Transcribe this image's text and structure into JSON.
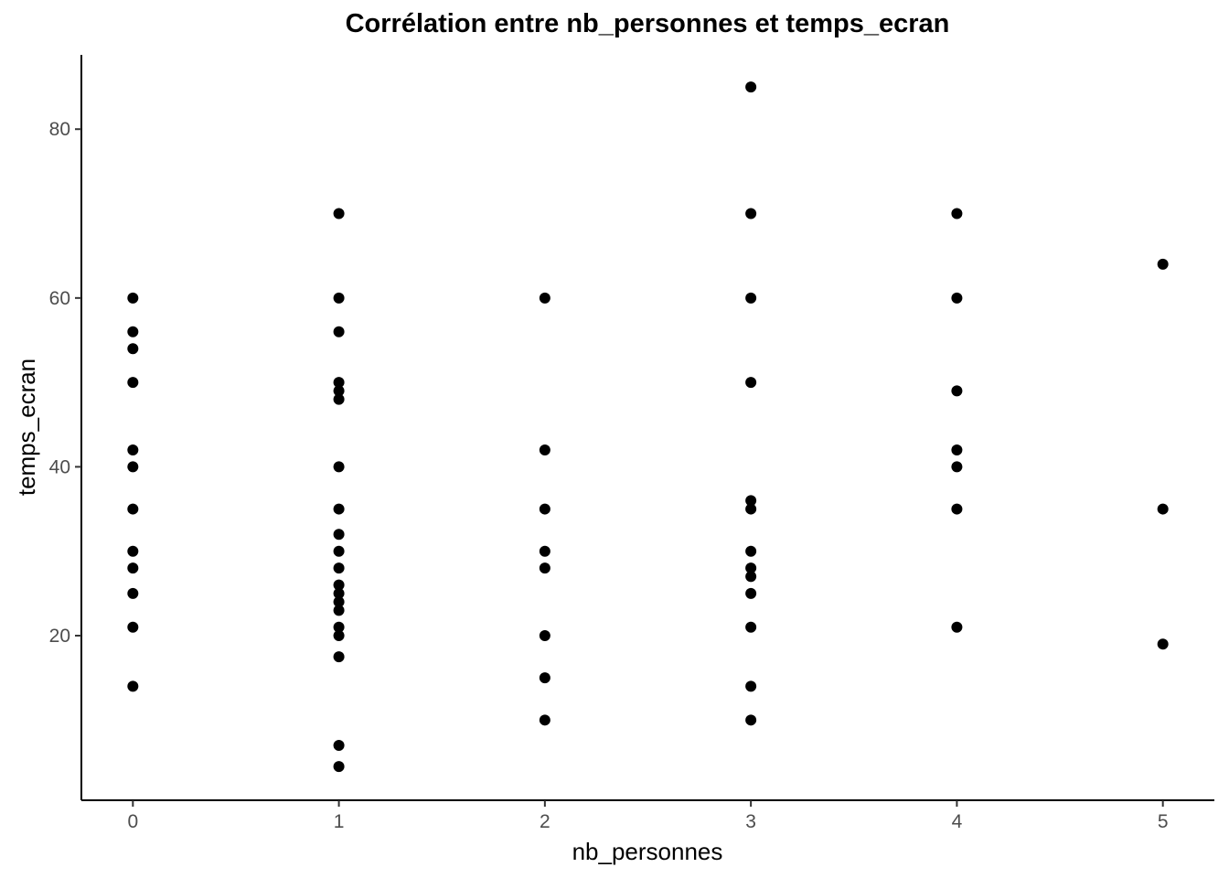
{
  "chart_data": {
    "type": "scatter",
    "title": "Corrélation entre nb_personnes et temps_ecran",
    "xlabel": "nb_personnes",
    "ylabel": "temps_ecran",
    "xlim": [
      -0.25,
      5.25
    ],
    "ylim": [
      0.5,
      88.8
    ],
    "x_ticks": [
      0,
      1,
      2,
      3,
      4,
      5
    ],
    "y_ticks": [
      20,
      40,
      60,
      80
    ],
    "grid": false,
    "point_color": "#000000",
    "points": [
      {
        "x": 0,
        "y": 60
      },
      {
        "x": 0,
        "y": 56
      },
      {
        "x": 0,
        "y": 54
      },
      {
        "x": 0,
        "y": 50
      },
      {
        "x": 0,
        "y": 42
      },
      {
        "x": 0,
        "y": 40
      },
      {
        "x": 0,
        "y": 35
      },
      {
        "x": 0,
        "y": 30
      },
      {
        "x": 0,
        "y": 28
      },
      {
        "x": 0,
        "y": 25
      },
      {
        "x": 0,
        "y": 21
      },
      {
        "x": 0,
        "y": 14
      },
      {
        "x": 1,
        "y": 70
      },
      {
        "x": 1,
        "y": 60
      },
      {
        "x": 1,
        "y": 56
      },
      {
        "x": 1,
        "y": 50
      },
      {
        "x": 1,
        "y": 49
      },
      {
        "x": 1,
        "y": 48
      },
      {
        "x": 1,
        "y": 40
      },
      {
        "x": 1,
        "y": 35
      },
      {
        "x": 1,
        "y": 32
      },
      {
        "x": 1,
        "y": 30
      },
      {
        "x": 1,
        "y": 28
      },
      {
        "x": 1,
        "y": 26
      },
      {
        "x": 1,
        "y": 25
      },
      {
        "x": 1,
        "y": 24
      },
      {
        "x": 1,
        "y": 23
      },
      {
        "x": 1,
        "y": 21
      },
      {
        "x": 1,
        "y": 20
      },
      {
        "x": 1,
        "y": 17.5
      },
      {
        "x": 1,
        "y": 7
      },
      {
        "x": 1,
        "y": 4.5
      },
      {
        "x": 2,
        "y": 60
      },
      {
        "x": 2,
        "y": 42
      },
      {
        "x": 2,
        "y": 35
      },
      {
        "x": 2,
        "y": 30
      },
      {
        "x": 2,
        "y": 28
      },
      {
        "x": 2,
        "y": 20
      },
      {
        "x": 2,
        "y": 15
      },
      {
        "x": 2,
        "y": 10
      },
      {
        "x": 3,
        "y": 85
      },
      {
        "x": 3,
        "y": 70
      },
      {
        "x": 3,
        "y": 60
      },
      {
        "x": 3,
        "y": 50
      },
      {
        "x": 3,
        "y": 36
      },
      {
        "x": 3,
        "y": 35
      },
      {
        "x": 3,
        "y": 30
      },
      {
        "x": 3,
        "y": 28
      },
      {
        "x": 3,
        "y": 27
      },
      {
        "x": 3,
        "y": 25
      },
      {
        "x": 3,
        "y": 21
      },
      {
        "x": 3,
        "y": 14
      },
      {
        "x": 3,
        "y": 10
      },
      {
        "x": 4,
        "y": 70
      },
      {
        "x": 4,
        "y": 60
      },
      {
        "x": 4,
        "y": 49
      },
      {
        "x": 4,
        "y": 42
      },
      {
        "x": 4,
        "y": 40
      },
      {
        "x": 4,
        "y": 35
      },
      {
        "x": 4,
        "y": 21
      },
      {
        "x": 5,
        "y": 64
      },
      {
        "x": 5,
        "y": 35
      },
      {
        "x": 5,
        "y": 19
      }
    ]
  }
}
